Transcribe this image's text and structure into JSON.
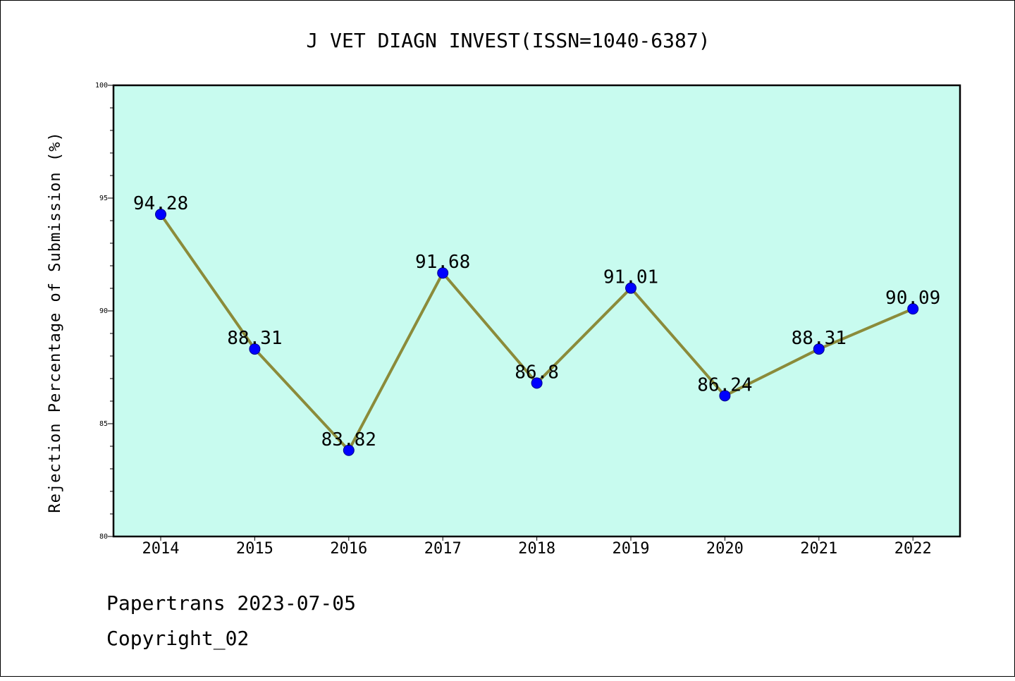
{
  "chart_data": {
    "type": "line",
    "title": "J VET DIAGN INVEST(ISSN=1040-6387)",
    "xlabel": "",
    "ylabel": "Rejection Percentage of Submission (%)",
    "categories": [
      "2014",
      "2015",
      "2016",
      "2017",
      "2018",
      "2019",
      "2020",
      "2021",
      "2022"
    ],
    "values": [
      94.28,
      88.31,
      83.82,
      91.68,
      86.8,
      91.01,
      86.24,
      88.31,
      90.09
    ],
    "data_labels": [
      "94.28",
      "88.31",
      "83.82",
      "91.68",
      "86.8",
      "91.01",
      "86.24",
      "88.31",
      "90.09"
    ],
    "ylim": [
      80,
      100
    ],
    "yticks": [
      "80",
      "85",
      "90",
      "95",
      "100"
    ],
    "grid": false,
    "colors": {
      "plot_background": "#c8fbef",
      "line": "#8b8b3a",
      "marker": "#0000ff"
    }
  },
  "footer": {
    "line1": "Papertrans 2023-07-05",
    "line2": "Copyright_02"
  }
}
